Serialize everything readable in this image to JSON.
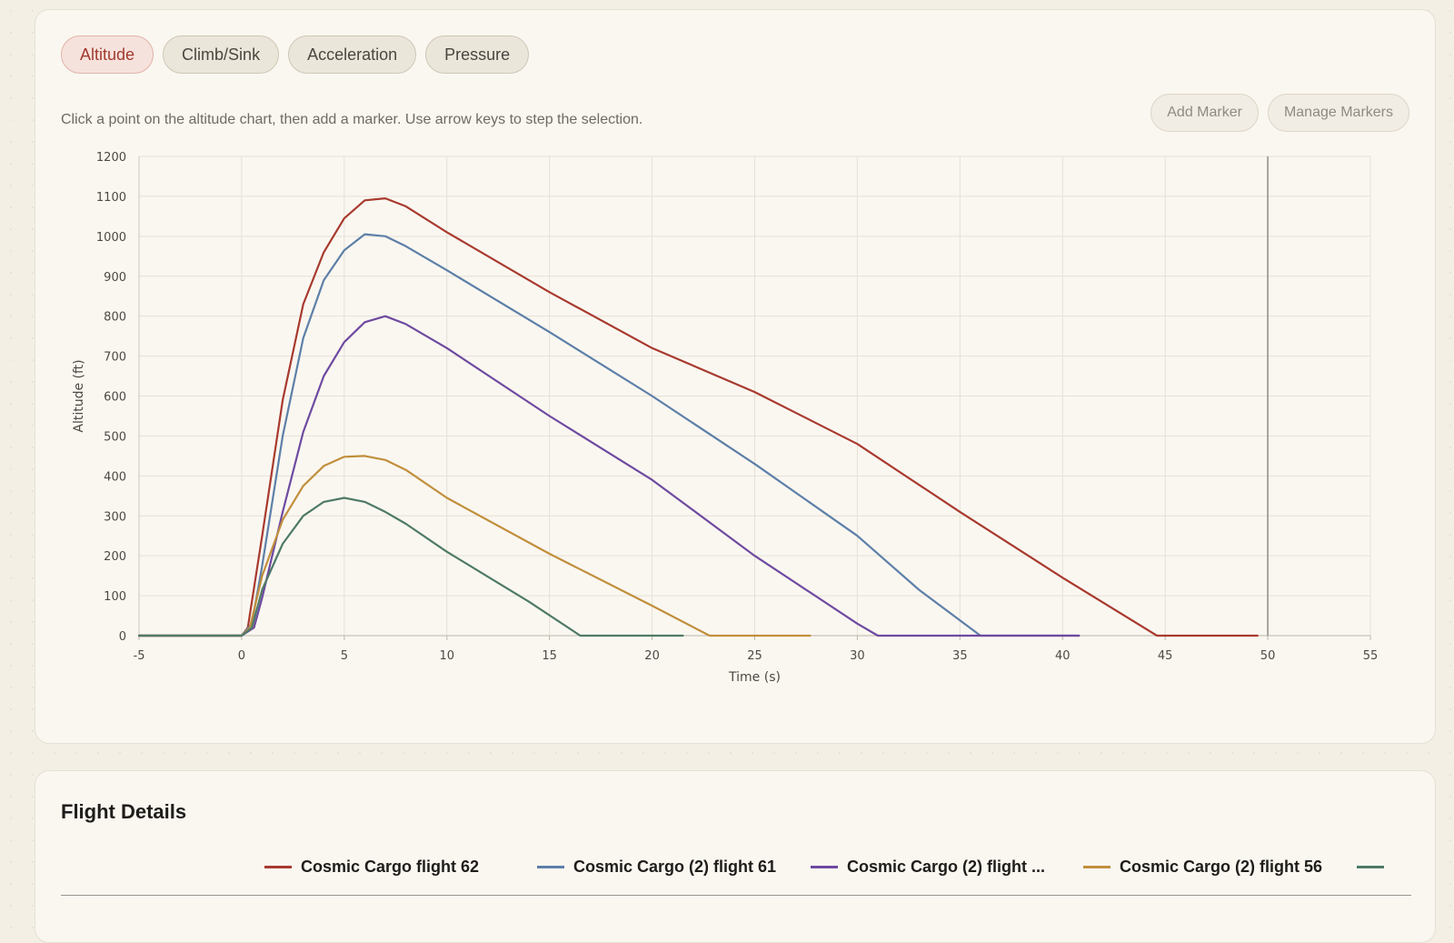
{
  "tabs": [
    {
      "label": "Altitude",
      "active": true
    },
    {
      "label": "Climb/Sink",
      "active": false
    },
    {
      "label": "Acceleration",
      "active": false
    },
    {
      "label": "Pressure",
      "active": false
    }
  ],
  "hint": "Click a point on the altitude chart, then add a marker. Use arrow keys to step the selection.",
  "buttons": {
    "add_marker": "Add Marker",
    "manage_markers": "Manage Markers"
  },
  "details": {
    "title": "Flight Details"
  },
  "legend": [
    {
      "label": "Cosmic Cargo flight 62",
      "color": "#a83a2e"
    },
    {
      "label": "Cosmic Cargo (2) flight 61",
      "color": "#5d7fa8"
    },
    {
      "label": "Cosmic Cargo (2) flight ...",
      "color": "#6e4aa0"
    },
    {
      "label": "Cosmic Cargo (2) flight 56",
      "color": "#c18f3c"
    },
    {
      "label": "",
      "color": "#4f7a66"
    }
  ],
  "chart_data": {
    "type": "line",
    "xlabel": "Time (s)",
    "ylabel": "Altitude (ft)",
    "xlim": [
      -5,
      55
    ],
    "ylim": [
      0,
      1200
    ],
    "xticks": [
      -5,
      0,
      5,
      10,
      15,
      20,
      25,
      30,
      35,
      40,
      45,
      50,
      55
    ],
    "yticks": [
      0,
      100,
      200,
      300,
      400,
      500,
      600,
      700,
      800,
      900,
      1000,
      1100,
      1200
    ],
    "grid": true,
    "marker_line_x": 50,
    "series": [
      {
        "name": "Cosmic Cargo flight 62",
        "color": "#a83a2e",
        "x": [
          -5,
          0,
          0.3,
          1,
          2,
          3,
          4,
          5,
          6,
          7,
          8,
          10,
          15,
          20,
          25,
          30,
          35,
          40,
          44.6,
          49.5
        ],
        "y": [
          0,
          0,
          20,
          250,
          590,
          830,
          960,
          1045,
          1090,
          1095,
          1075,
          1010,
          860,
          720,
          610,
          480,
          310,
          145,
          0,
          0
        ]
      },
      {
        "name": "Cosmic Cargo (2) flight 61",
        "color": "#5d7fa8",
        "x": [
          -5,
          0,
          0.5,
          1,
          2,
          3,
          4,
          5,
          6,
          7,
          8,
          10,
          15,
          20,
          25,
          30,
          33,
          36,
          40.8
        ],
        "y": [
          0,
          0,
          30,
          175,
          500,
          745,
          890,
          965,
          1005,
          1000,
          975,
          915,
          760,
          600,
          430,
          250,
          115,
          0,
          0
        ]
      },
      {
        "name": "Cosmic Cargo (2) flight ...",
        "color": "#6e4aa0",
        "x": [
          -5,
          0,
          0.6,
          1,
          2,
          3,
          4,
          5,
          6,
          7,
          8,
          10,
          15,
          20,
          25,
          30,
          31,
          40.8
        ],
        "y": [
          0,
          0,
          20,
          95,
          310,
          510,
          650,
          735,
          785,
          800,
          780,
          720,
          550,
          390,
          200,
          30,
          0,
          0
        ]
      },
      {
        "name": "Cosmic Cargo (2) flight 56",
        "color": "#c18f3c",
        "x": [
          -5,
          0,
          0.4,
          1,
          2,
          3,
          4,
          5,
          6,
          7,
          8,
          10,
          15,
          20,
          22.8,
          27.7
        ],
        "y": [
          0,
          0,
          20,
          150,
          290,
          375,
          425,
          448,
          450,
          440,
          415,
          345,
          205,
          75,
          0,
          0
        ]
      },
      {
        "name": "",
        "color": "#4f7a66",
        "x": [
          -5,
          0,
          0.5,
          1,
          2,
          3,
          4,
          5,
          6,
          7,
          8,
          10,
          14,
          16.5,
          21.5
        ],
        "y": [
          0,
          0,
          20,
          115,
          230,
          300,
          335,
          345,
          335,
          310,
          280,
          210,
          85,
          0,
          0
        ]
      }
    ]
  }
}
